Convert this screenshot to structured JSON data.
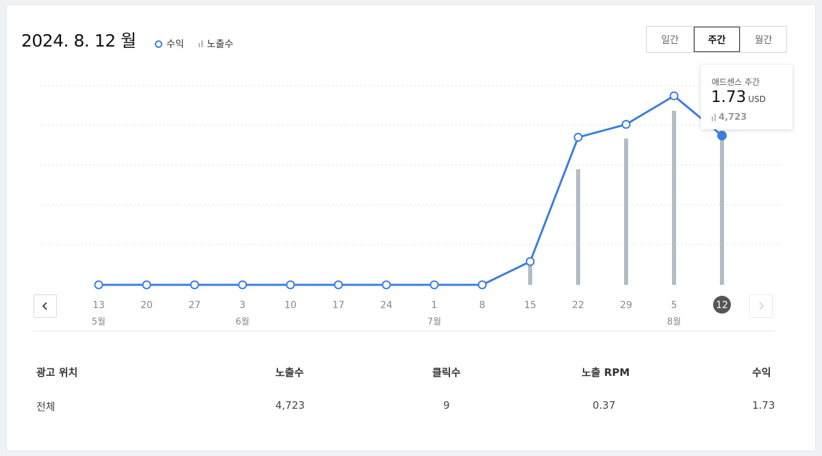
{
  "header": {
    "title": "2024. 8. 12 월",
    "legend_revenue": "수익",
    "legend_impressions": "노출수"
  },
  "period_tabs": {
    "daily": "일간",
    "weekly": "주간",
    "monthly": "월간",
    "selected": "weekly"
  },
  "tooltip": {
    "title": "애드센스 주간",
    "value": "1.73",
    "unit": "USD",
    "impressions": "4,723"
  },
  "chart_data": {
    "type": "line",
    "x_labels": [
      "13",
      "20",
      "27",
      "3",
      "10",
      "17",
      "24",
      "1",
      "8",
      "15",
      "22",
      "29",
      "5",
      "12"
    ],
    "month_labels": [
      {
        "index": 0,
        "label": "5월"
      },
      {
        "index": 3,
        "label": "6월"
      },
      {
        "index": 7,
        "label": "7월"
      },
      {
        "index": 12,
        "label": "8월"
      }
    ],
    "selected_index": 13,
    "series": [
      {
        "name": "수익",
        "kind": "line",
        "values": [
          0,
          0,
          0,
          0,
          0,
          0,
          0,
          0,
          0,
          0.27,
          1.71,
          1.86,
          2.19,
          1.73
        ]
      },
      {
        "name": "노출수",
        "kind": "bar",
        "values": [
          0,
          0,
          0,
          0,
          0,
          0,
          0,
          0,
          0,
          750,
          3750,
          4750,
          5650,
          4723
        ]
      }
    ],
    "revenue_range": [
      0,
      2.5
    ],
    "impressions_range": [
      0,
      7000
    ],
    "grid": true,
    "colors": {
      "line": "#3a7ee0",
      "bar": "#b4bbc5",
      "grid": "#e3e5e8"
    }
  },
  "table": {
    "headers": [
      "광고 위치",
      "노출수",
      "클릭수",
      "노출 RPM",
      "수익"
    ],
    "rows": [
      [
        "전체",
        "4,723",
        "9",
        "0.37",
        "1.73"
      ]
    ]
  }
}
